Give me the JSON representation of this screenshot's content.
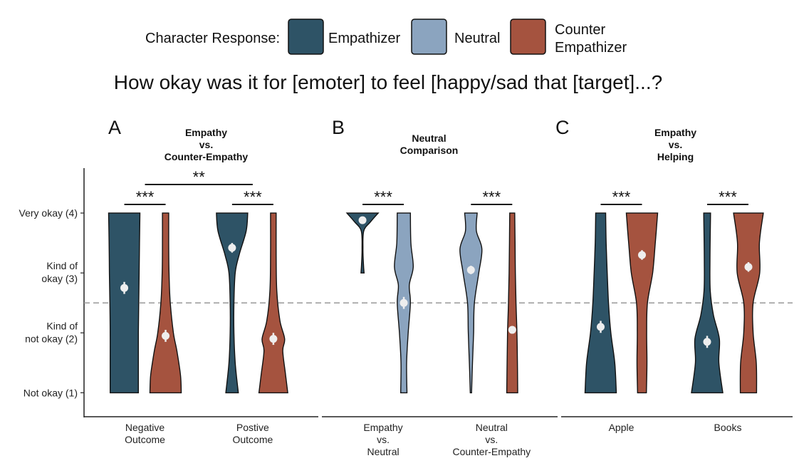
{
  "colors": {
    "empathizer": "#2e5366",
    "neutral": "#8ba4bf",
    "counter": "#a5533f",
    "outline": "#111111",
    "mean_point": "#eeeeee"
  },
  "legend": {
    "title": "Character Response:",
    "items": [
      {
        "key": "empathizer",
        "lines": [
          "Empathizer"
        ]
      },
      {
        "key": "neutral",
        "lines": [
          "Neutral"
        ]
      },
      {
        "key": "counter",
        "lines": [
          "Counter",
          "Empathizer"
        ]
      }
    ]
  },
  "chart_data": {
    "type": "violin",
    "title": "How okay was it for [emoter] to feel [happy/sad that [target]...?",
    "xlabel": "",
    "ylabel": "",
    "ylim": [
      0.6,
      4.75
    ],
    "y_ticks": [
      {
        "value": 4,
        "lines": [
          "Very okay (4)"
        ]
      },
      {
        "value": 3,
        "lines": [
          "Kind of",
          "okay (3)"
        ]
      },
      {
        "value": 2,
        "lines": [
          "Kind of",
          "not okay (2)"
        ]
      },
      {
        "value": 1,
        "lines": [
          "Not okay (1)"
        ]
      }
    ],
    "reference_line": 2.5,
    "panels": [
      {
        "letter": "A",
        "title": [
          "Empathy",
          "vs.",
          "Counter-Empathy"
        ],
        "groups": [
          {
            "label": [
              "Negative",
              "Outcome"
            ],
            "violins": [
              {
                "series": "empathizer",
                "mean": 2.75,
                "ci": [
                  2.65,
                  2.85
                ],
                "density": [
                  [
                    1,
                    0.9
                  ],
                  [
                    1.5,
                    0.9
                  ],
                  [
                    2,
                    0.9
                  ],
                  [
                    2.5,
                    0.92
                  ],
                  [
                    3,
                    0.95
                  ],
                  [
                    3.5,
                    0.97
                  ],
                  [
                    4,
                    1.0
                  ]
                ]
              },
              {
                "series": "counter",
                "mean": 1.95,
                "ci": [
                  1.85,
                  2.05
                ],
                "density": [
                  [
                    1,
                    1.0
                  ],
                  [
                    1.3,
                    0.95
                  ],
                  [
                    1.7,
                    0.72
                  ],
                  [
                    2.0,
                    0.5
                  ],
                  [
                    2.5,
                    0.3
                  ],
                  [
                    3.0,
                    0.22
                  ],
                  [
                    3.5,
                    0.2
                  ],
                  [
                    4,
                    0.2
                  ]
                ]
              }
            ]
          },
          {
            "label": [
              "Postive",
              "Outcome"
            ],
            "violins": [
              {
                "series": "empathizer",
                "mean": 3.42,
                "ci": [
                  3.34,
                  3.5
                ],
                "density": [
                  [
                    1,
                    0.4
                  ],
                  [
                    1.5,
                    0.2
                  ],
                  [
                    2,
                    0.12
                  ],
                  [
                    2.5,
                    0.12
                  ],
                  [
                    3,
                    0.2
                  ],
                  [
                    3.3,
                    0.45
                  ],
                  [
                    3.7,
                    0.9
                  ],
                  [
                    4,
                    1.0
                  ]
                ]
              },
              {
                "series": "counter",
                "mean": 1.9,
                "ci": [
                  1.8,
                  2.0
                ],
                "density": [
                  [
                    1,
                    0.92
                  ],
                  [
                    1.3,
                    0.78
                  ],
                  [
                    1.7,
                    0.6
                  ],
                  [
                    1.9,
                    0.72
                  ],
                  [
                    2.2,
                    0.42
                  ],
                  [
                    2.7,
                    0.22
                  ],
                  [
                    3.3,
                    0.18
                  ],
                  [
                    4,
                    0.18
                  ]
                ]
              }
            ]
          }
        ],
        "comparisons": [
          {
            "from": [
              0,
              0
            ],
            "to": [
              0,
              1
            ],
            "label": "***",
            "level": 0
          },
          {
            "from": [
              1,
              0
            ],
            "to": [
              1,
              1
            ],
            "label": "***",
            "level": 0
          },
          {
            "from": [
              0,
              0.5
            ],
            "to": [
              1,
              0.5
            ],
            "label": "**",
            "level": 1
          }
        ]
      },
      {
        "letter": "B",
        "title": [
          "Neutral",
          "Comparison"
        ],
        "groups": [
          {
            "label": [
              "Empathy",
              "vs.",
              "Neutral"
            ],
            "violins": [
              {
                "series": "empathizer",
                "mean": 3.88,
                "ci": [
                  3.85,
                  3.91
                ],
                "density": [
                  [
                    3.0,
                    0.1
                  ],
                  [
                    3.15,
                    0.06
                  ],
                  [
                    3.4,
                    0.03
                  ],
                  [
                    3.7,
                    0.08
                  ],
                  [
                    3.85,
                    0.5
                  ],
                  [
                    4,
                    1.0
                  ]
                ]
              },
              {
                "series": "neutral",
                "mean": 2.5,
                "ci": [
                  2.4,
                  2.6
                ],
                "density": [
                  [
                    1,
                    0.2
                  ],
                  [
                    1.5,
                    0.18
                  ],
                  [
                    2,
                    0.28
                  ],
                  [
                    2.5,
                    0.42
                  ],
                  [
                    2.8,
                    0.35
                  ],
                  [
                    3.1,
                    0.6
                  ],
                  [
                    3.5,
                    0.45
                  ],
                  [
                    4,
                    0.42
                  ]
                ]
              }
            ]
          },
          {
            "label": [
              "Neutral",
              "vs.",
              "Counter-Empathy"
            ],
            "violins": [
              {
                "series": "neutral",
                "mean": 3.05,
                "ci": [
                  2.98,
                  3.12
                ],
                "density": [
                  [
                    1,
                    0.04
                  ],
                  [
                    1.5,
                    0.1
                  ],
                  [
                    2,
                    0.17
                  ],
                  [
                    2.5,
                    0.22
                  ],
                  [
                    3,
                    0.5
                  ],
                  [
                    3.4,
                    0.7
                  ],
                  [
                    3.7,
                    0.35
                  ],
                  [
                    4,
                    0.4
                  ]
                ]
              },
              {
                "series": "counter",
                "mean": 2.05,
                "ci": [
                  2.02,
                  2.08
                ],
                "density": [
                  [
                    1,
                    0.35
                  ],
                  [
                    1.5,
                    0.33
                  ],
                  [
                    2,
                    0.3
                  ],
                  [
                    2.5,
                    0.24
                  ],
                  [
                    3,
                    0.2
                  ],
                  [
                    3.5,
                    0.18
                  ],
                  [
                    4,
                    0.16
                  ]
                ]
              }
            ]
          }
        ],
        "comparisons": [
          {
            "from": [
              0,
              0
            ],
            "to": [
              0,
              1
            ],
            "label": "***",
            "level": 0
          },
          {
            "from": [
              1,
              0
            ],
            "to": [
              1,
              1
            ],
            "label": "***",
            "level": 0
          }
        ]
      },
      {
        "letter": "C",
        "title": [
          "Empathy",
          "vs.",
          "Helping"
        ],
        "groups": [
          {
            "label": [
              "Apple"
            ],
            "violins": [
              {
                "series": "empathizer",
                "mean": 2.1,
                "ci": [
                  2.0,
                  2.2
                ],
                "density": [
                  [
                    1,
                    1.0
                  ],
                  [
                    1.5,
                    0.9
                  ],
                  [
                    2,
                    0.65
                  ],
                  [
                    2.5,
                    0.5
                  ],
                  [
                    3,
                    0.42
                  ],
                  [
                    3.5,
                    0.35
                  ],
                  [
                    4,
                    0.32
                  ]
                ]
              },
              {
                "series": "counter",
                "mean": 3.3,
                "ci": [
                  3.22,
                  3.38
                ],
                "density": [
                  [
                    1,
                    0.28
                  ],
                  [
                    1.5,
                    0.32
                  ],
                  [
                    2,
                    0.3
                  ],
                  [
                    2.5,
                    0.35
                  ],
                  [
                    3,
                    0.68
                  ],
                  [
                    3.5,
                    0.85
                  ],
                  [
                    4,
                    1.0
                  ]
                ]
              }
            ]
          },
          {
            "label": [
              "Books"
            ],
            "violins": [
              {
                "series": "empathizer",
                "mean": 1.85,
                "ci": [
                  1.75,
                  1.95
                ],
                "density": [
                  [
                    1,
                    1.0
                  ],
                  [
                    1.5,
                    0.75
                  ],
                  [
                    1.9,
                    0.78
                  ],
                  [
                    2.3,
                    0.4
                  ],
                  [
                    2.7,
                    0.2
                  ],
                  [
                    3.2,
                    0.18
                  ],
                  [
                    4,
                    0.22
                  ]
                ]
              },
              {
                "series": "counter",
                "mean": 3.1,
                "ci": [
                  3.02,
                  3.18
                ],
                "density": [
                  [
                    1,
                    0.52
                  ],
                  [
                    1.5,
                    0.5
                  ],
                  [
                    2,
                    0.3
                  ],
                  [
                    2.5,
                    0.3
                  ],
                  [
                    3,
                    0.72
                  ],
                  [
                    3.5,
                    0.7
                  ],
                  [
                    4,
                    0.95
                  ]
                ]
              }
            ]
          }
        ],
        "comparisons": [
          {
            "from": [
              0,
              0
            ],
            "to": [
              0,
              1
            ],
            "label": "***",
            "level": 0
          },
          {
            "from": [
              1,
              0
            ],
            "to": [
              1,
              1
            ],
            "label": "***",
            "level": 0
          }
        ]
      }
    ]
  }
}
